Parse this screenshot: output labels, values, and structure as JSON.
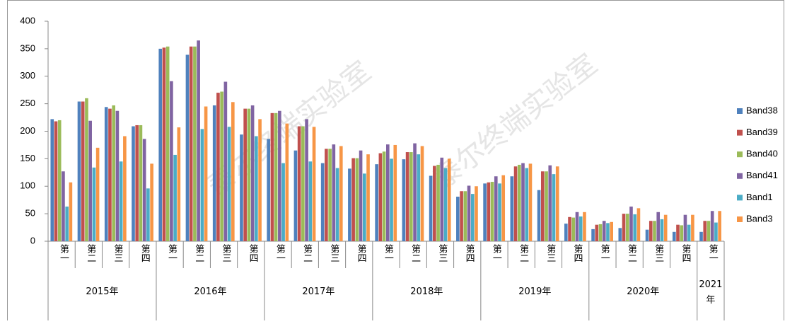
{
  "chart_data": {
    "type": "bar",
    "watermark": "泰尔终端实验室",
    "groups": [
      {
        "name": "2015年",
        "categories": [
          "第一季",
          "第二季",
          "第三季",
          "第四季"
        ]
      },
      {
        "name": "2016年",
        "categories": [
          "第一季",
          "第二季",
          "第三季",
          "第四季"
        ]
      },
      {
        "name": "2017年",
        "categories": [
          "第一季",
          "第二季",
          "第三季",
          "第四季"
        ]
      },
      {
        "name": "2018年",
        "categories": [
          "第一季",
          "第二季",
          "第三季",
          "第四季"
        ]
      },
      {
        "name": "2019年",
        "categories": [
          "第一季",
          "第二季",
          "第三季",
          "第四季"
        ]
      },
      {
        "name": "2020年",
        "categories": [
          "第一季",
          "第二季",
          "第三季",
          "第四季"
        ]
      },
      {
        "name": "2021年",
        "categories": [
          "第一季"
        ]
      }
    ],
    "series": [
      {
        "name": "Band38",
        "color": "#4f81bd",
        "values": [
          222,
          254,
          244,
          209,
          350,
          339,
          247,
          194,
          186,
          165,
          142,
          132,
          140,
          149,
          119,
          81,
          105,
          118,
          93,
          32,
          22,
          24,
          21,
          17,
          17
        ]
      },
      {
        "name": "Band39",
        "color": "#c0504d",
        "values": [
          218,
          254,
          241,
          211,
          352,
          354,
          270,
          241,
          233,
          209,
          168,
          151,
          160,
          162,
          137,
          91,
          107,
          136,
          127,
          44,
          30,
          50,
          37,
          30,
          37
        ]
      },
      {
        "name": "Band40",
        "color": "#9bbb59",
        "values": [
          220,
          260,
          247,
          211,
          354,
          354,
          272,
          241,
          233,
          209,
          168,
          151,
          163,
          162,
          139,
          91,
          108,
          139,
          127,
          43,
          31,
          50,
          37,
          29,
          37
        ]
      },
      {
        "name": "Band41",
        "color": "#8064a2",
        "values": [
          127,
          219,
          237,
          186,
          291,
          365,
          290,
          247,
          237,
          222,
          176,
          165,
          176,
          178,
          152,
          101,
          118,
          142,
          138,
          53,
          37,
          63,
          53,
          48,
          55
        ]
      },
      {
        "name": "Band1",
        "color": "#4bacc6",
        "values": [
          63,
          134,
          145,
          96,
          157,
          204,
          208,
          191,
          142,
          145,
          133,
          123,
          150,
          158,
          133,
          86,
          105,
          133,
          122,
          45,
          33,
          49,
          40,
          30,
          34
        ]
      },
      {
        "name": "Band3",
        "color": "#f79646",
        "values": [
          107,
          170,
          191,
          141,
          207,
          245,
          253,
          222,
          214,
          208,
          173,
          158,
          175,
          173,
          150,
          100,
          120,
          141,
          136,
          53,
          35,
          60,
          48,
          48,
          55
        ]
      }
    ],
    "ylim": [
      0,
      400
    ],
    "yticks": [
      0,
      50,
      100,
      150,
      200,
      250,
      300,
      350,
      400
    ],
    "grid": false,
    "legend": "right"
  }
}
